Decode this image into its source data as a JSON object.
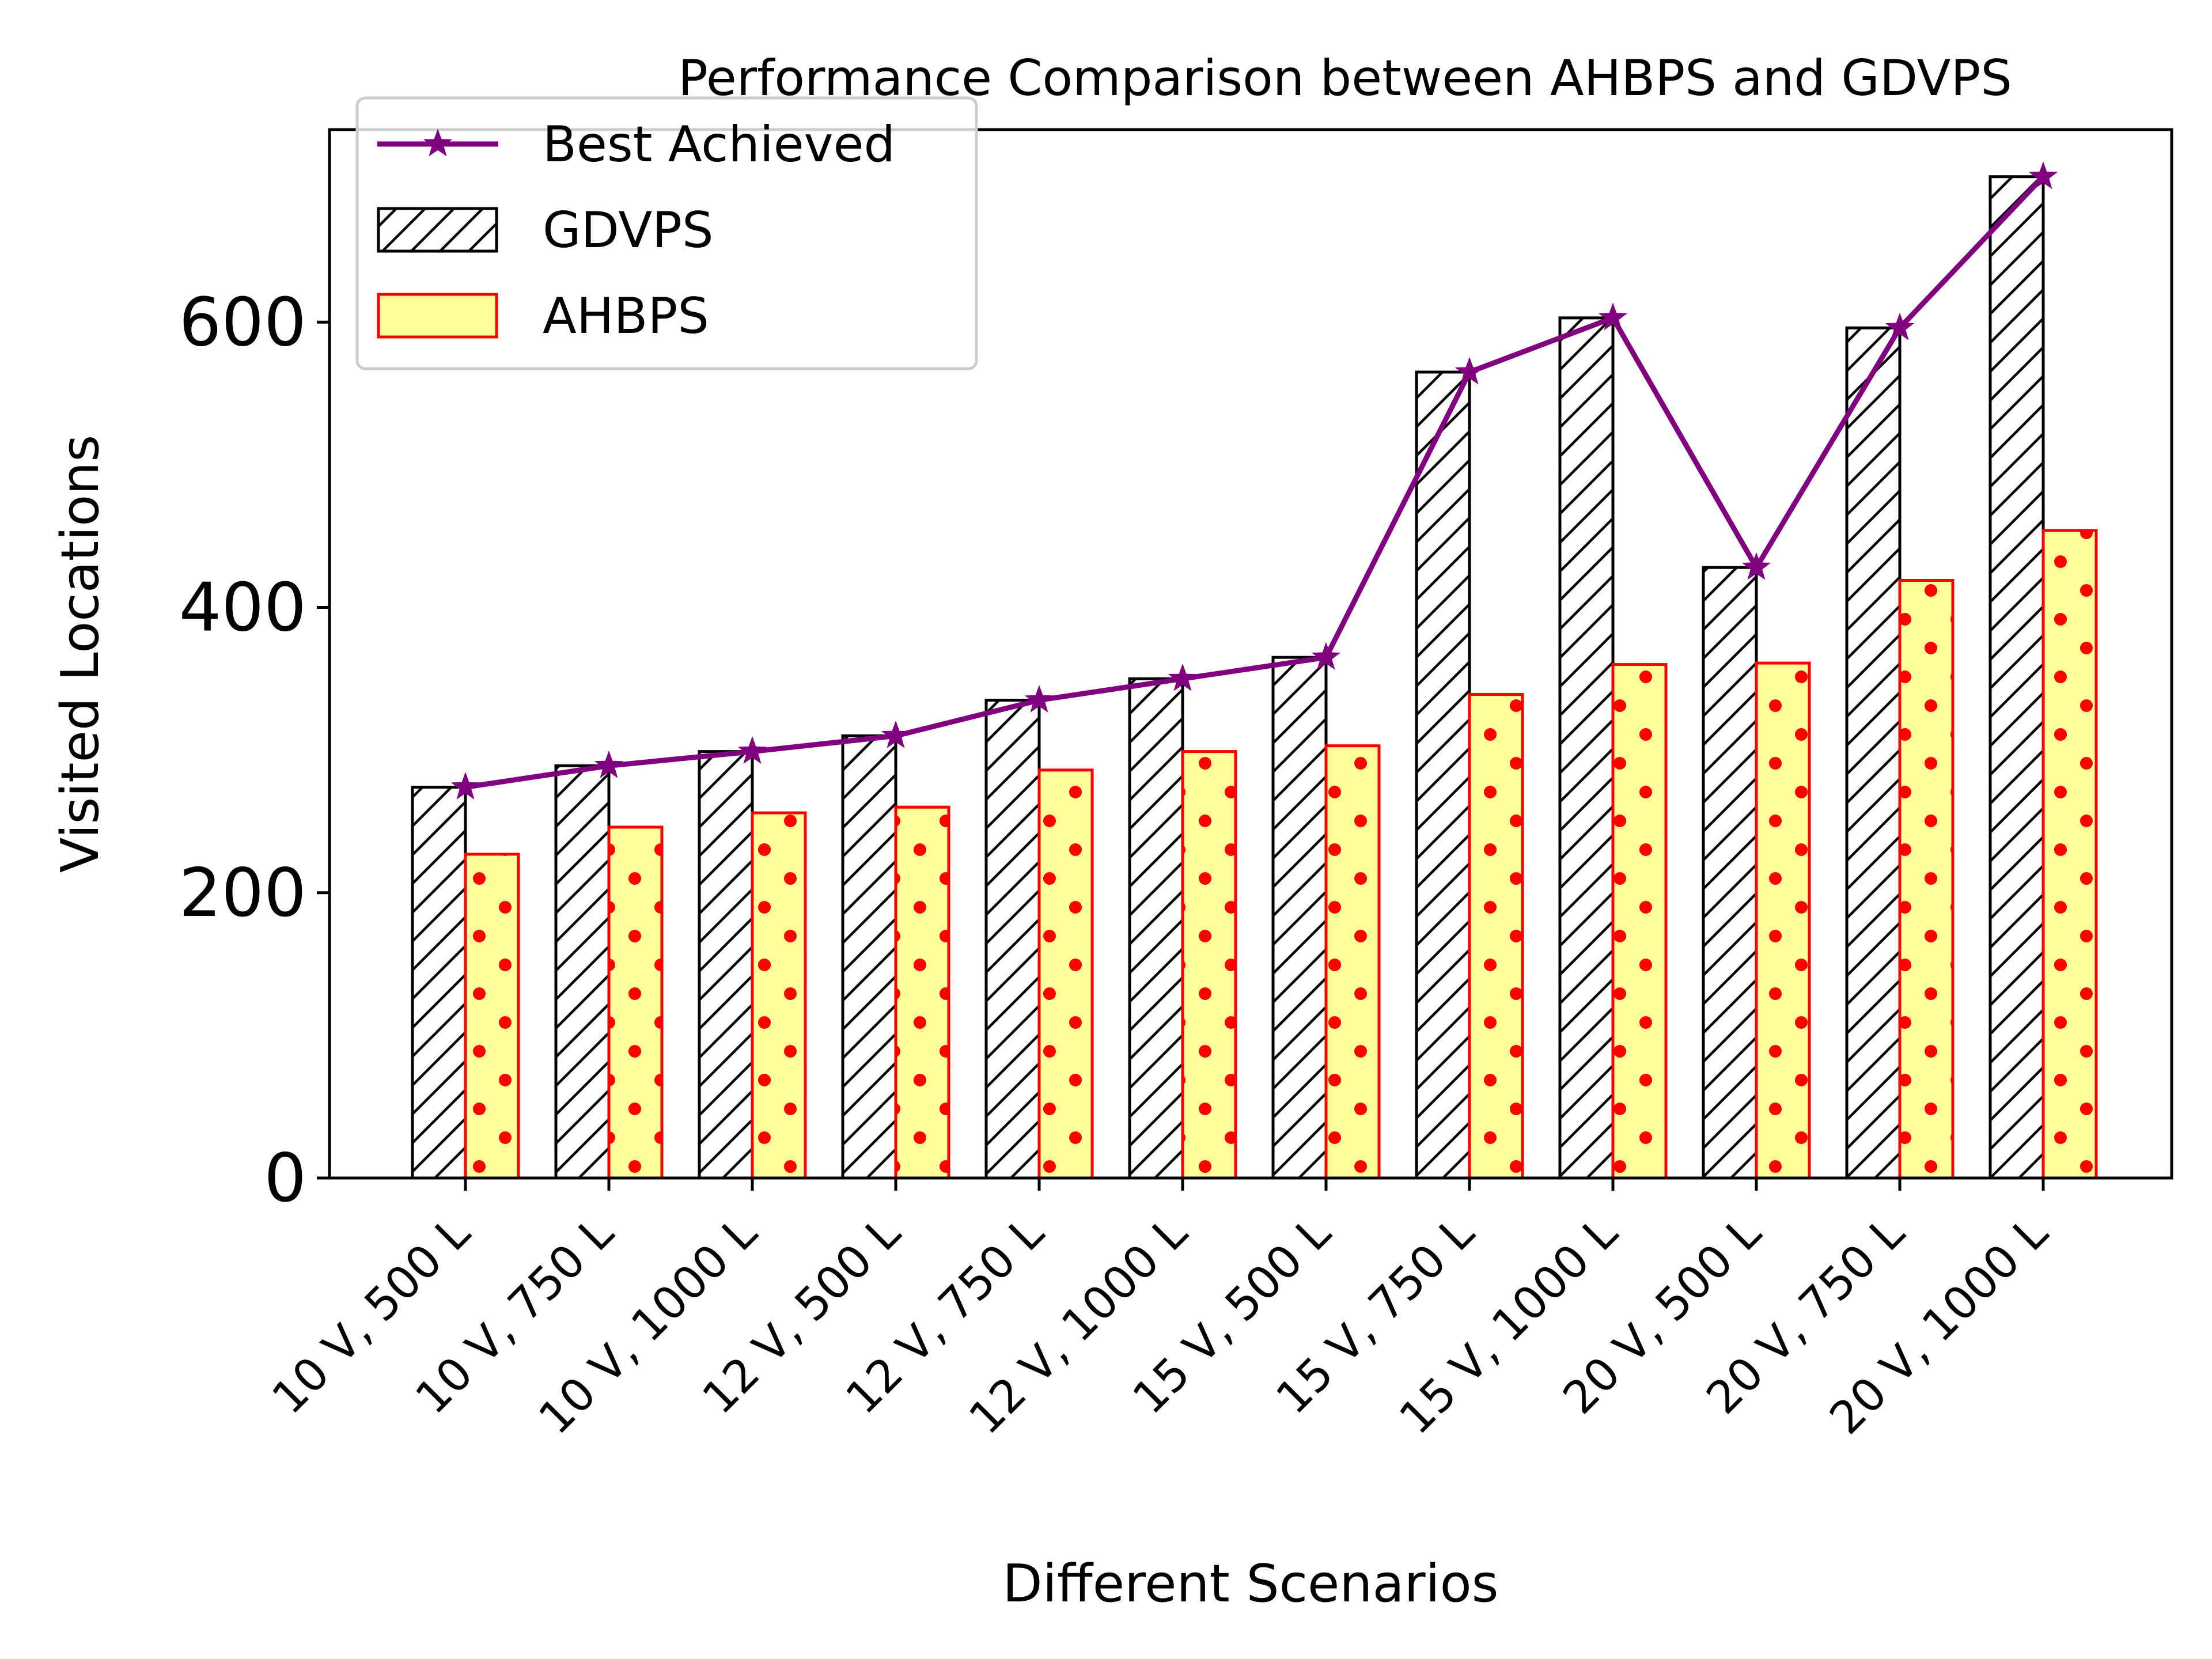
{
  "chart_data": {
    "type": "bar",
    "title": "Performance Comparison between AHBPS and GDVPS",
    "xlabel": "Different Scenarios",
    "ylabel": "Visited Locations",
    "ylim": [
      0,
      735
    ],
    "yticks": [
      0,
      200,
      400,
      600
    ],
    "grid": false,
    "legend_position": "top-left",
    "categories": [
      "10 V, 500 L",
      "10 V, 750 L",
      "10 V, 1000 L",
      "12 V, 500 L",
      "12 V, 750 L",
      "12 V, 1000 L",
      "15 V, 500 L",
      "15 V, 750 L",
      "15 V, 1000 L",
      "20 V, 500 L",
      "20 V, 750 L",
      "20 V, 1000 L"
    ],
    "series": [
      {
        "name": "GDVPS",
        "kind": "bar",
        "style": "hatched",
        "face_color": "#ffffff",
        "edge_color": "#000000",
        "values": [
          274,
          289,
          299,
          310,
          335,
          350,
          365,
          565,
          603,
          428,
          596,
          702
        ]
      },
      {
        "name": "AHBPS",
        "kind": "bar",
        "style": "dotted",
        "face_color": "#ffff99",
        "edge_color": "#ff0000",
        "values": [
          227,
          246,
          256,
          260,
          286,
          299,
          303,
          339,
          360,
          361,
          419,
          454
        ]
      },
      {
        "name": "Best Achieved",
        "kind": "line",
        "marker": "star",
        "color": "#800080",
        "values": [
          274,
          289,
          299,
          310,
          335,
          350,
          365,
          565,
          603,
          428,
          596,
          702
        ]
      }
    ]
  }
}
